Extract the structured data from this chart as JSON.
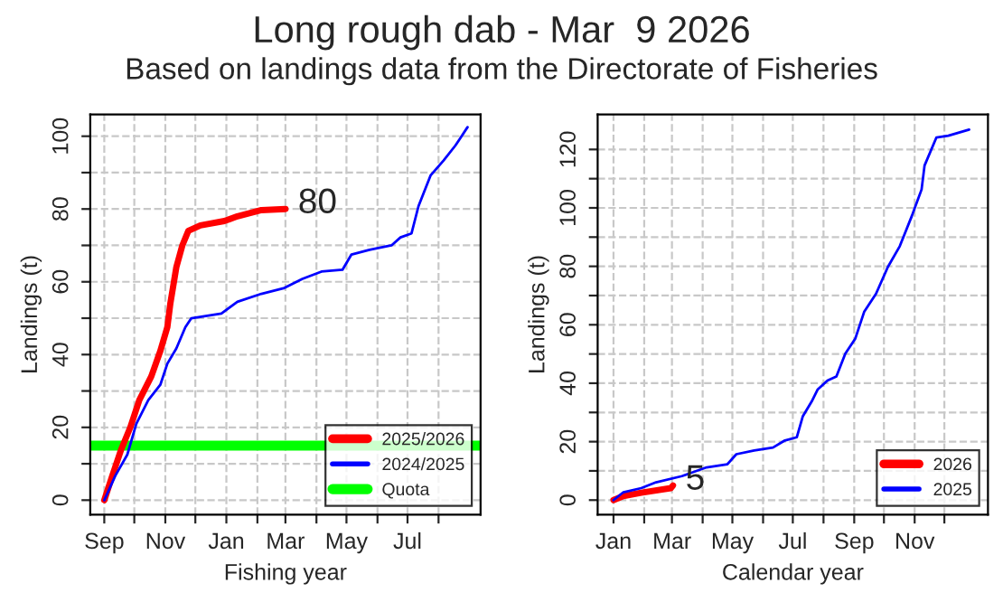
{
  "chart_data": [
    {
      "type": "line",
      "title": "Long rough dab - Mar  9 2026",
      "subtitle": "Based on landings data from the Directorate of Fisheries",
      "xlabel": "Fishing year",
      "ylabel": "Landings (t)",
      "xlim": [
        "2025-08-18",
        "2026-09-12"
      ],
      "ylim": [
        -4,
        106
      ],
      "xticks": [
        {
          "value": "2025-09-01",
          "label": "Sep"
        },
        {
          "value": "2025-10-01",
          "label": null
        },
        {
          "value": "2025-11-01",
          "label": "Nov"
        },
        {
          "value": "2025-12-01",
          "label": null
        },
        {
          "value": "2026-01-01",
          "label": "Jan"
        },
        {
          "value": "2026-02-01",
          "label": null
        },
        {
          "value": "2026-03-01",
          "label": "Mar"
        },
        {
          "value": "2026-04-01",
          "label": null
        },
        {
          "value": "2026-05-01",
          "label": "May"
        },
        {
          "value": "2026-06-01",
          "label": null
        },
        {
          "value": "2026-07-01",
          "label": "Jul"
        },
        {
          "value": "2026-08-01",
          "label": null
        }
      ],
      "yticks": [
        0,
        {
          "value": 10,
          "label": null
        },
        20,
        {
          "value": 30,
          "label": null
        },
        40,
        {
          "value": 50,
          "label": null
        },
        60,
        {
          "value": 70,
          "label": null
        },
        80,
        {
          "value": 90,
          "label": null
        },
        100
      ],
      "grid": true,
      "legend": "bottom right",
      "series": [
        {
          "name": "2025/2026",
          "color": "#ff0000",
          "x": [
            "2025-09-01",
            "2025-09-09",
            "2025-09-18",
            "2025-09-27",
            "2025-10-06",
            "2025-10-18",
            "2025-10-27",
            "2025-11-03",
            "2025-11-06",
            "2025-11-12",
            "2025-11-18",
            "2025-11-24",
            "2025-12-06",
            "2025-12-30",
            "2026-01-12",
            "2026-02-05",
            "2026-03-01"
          ],
          "values": [
            0,
            6.7,
            14,
            20,
            27.5,
            34,
            41,
            47.5,
            54,
            64,
            70,
            74,
            75.5,
            76.7,
            78,
            79.7,
            80
          ]
        },
        {
          "name": "2024/2025",
          "color": "#0000ff",
          "x": [
            "2025-09-01",
            "2025-09-12",
            "2025-09-24",
            "2025-10-03",
            "2025-10-15",
            "2025-10-27",
            "2025-11-03",
            "2025-11-12",
            "2025-11-21",
            "2025-11-27",
            "2025-12-27",
            "2026-01-12",
            "2026-02-05",
            "2026-02-28",
            "2026-03-18",
            "2026-04-06",
            "2026-04-27",
            "2026-05-06",
            "2026-05-24",
            "2026-06-15",
            "2026-06-24",
            "2026-07-05",
            "2026-07-12",
            "2026-07-24",
            "2026-08-06",
            "2026-08-18",
            "2026-08-30"
          ],
          "values": [
            0,
            6.7,
            12.5,
            21,
            27.5,
            31.7,
            37.5,
            41.7,
            47.5,
            50,
            51.3,
            54.5,
            56.7,
            58.3,
            60.8,
            62.8,
            63.3,
            67.5,
            68.8,
            70,
            72.2,
            73.3,
            80.8,
            89.2,
            93.3,
            97.5,
            102.5
          ]
        }
      ],
      "ref_lines": [
        {
          "axis": "y",
          "value": 15,
          "label": "Quota",
          "color": "#00ff00"
        }
      ],
      "annotations": [
        "80"
      ]
    },
    {
      "type": "line",
      "xlabel": "Calendar year",
      "ylabel": "Landings (t)",
      "xlim": [
        "2025-12-16",
        "2027-01-14"
      ],
      "ylim": [
        -5,
        132
      ],
      "xticks": [
        {
          "value": "2026-01-01",
          "label": "Jan"
        },
        {
          "value": "2026-02-01",
          "label": null
        },
        {
          "value": "2026-03-01",
          "label": "Mar"
        },
        {
          "value": "2026-04-01",
          "label": null
        },
        {
          "value": "2026-05-01",
          "label": "May"
        },
        {
          "value": "2026-06-01",
          "label": null
        },
        {
          "value": "2026-07-01",
          "label": "Jul"
        },
        {
          "value": "2026-08-01",
          "label": null
        },
        {
          "value": "2026-09-01",
          "label": "Sep"
        },
        {
          "value": "2026-10-01",
          "label": null
        },
        {
          "value": "2026-11-01",
          "label": "Nov"
        },
        {
          "value": "2026-12-01",
          "label": null
        }
      ],
      "yticks": [
        0,
        {
          "value": 10,
          "label": null
        },
        20,
        {
          "value": 30,
          "label": null
        },
        40,
        {
          "value": 50,
          "label": null
        },
        60,
        {
          "value": 70,
          "label": null
        },
        80,
        {
          "value": 90,
          "label": null
        },
        100,
        {
          "value": 110,
          "label": null
        },
        120
      ],
      "grid": true,
      "legend": "bottom right",
      "series": [
        {
          "name": "2026",
          "color": "#ff0000",
          "x": [
            "2026-01-01",
            "2026-01-11",
            "2026-01-29",
            "2026-02-28",
            "2026-03-02"
          ],
          "values": [
            0,
            1.4,
            2.5,
            4.1,
            5
          ]
        },
        {
          "name": "2025",
          "color": "#0000ff",
          "x": [
            "2026-01-01",
            "2026-01-11",
            "2026-01-29",
            "2026-02-13",
            "2026-03-11",
            "2026-04-05",
            "2026-04-26",
            "2026-05-05",
            "2026-05-23",
            "2026-06-11",
            "2026-06-23",
            "2026-07-05",
            "2026-07-11",
            "2026-07-20",
            "2026-07-26",
            "2026-08-05",
            "2026-08-14",
            "2026-08-23",
            "2026-09-02",
            "2026-09-11",
            "2026-09-23",
            "2026-10-05",
            "2026-10-17",
            "2026-10-29",
            "2026-11-08",
            "2026-11-11",
            "2026-11-23",
            "2026-12-05",
            "2026-12-26"
          ],
          "values": [
            0,
            2.7,
            4.1,
            6.1,
            8.2,
            11.2,
            12.3,
            15.7,
            17,
            18,
            20.4,
            21.5,
            28.6,
            33.7,
            37.8,
            40.9,
            42.3,
            50.1,
            55.2,
            64.4,
            70.6,
            79.8,
            86.9,
            97.1,
            106.3,
            114.5,
            124.1,
            124.7,
            126.8
          ]
        }
      ],
      "annotations": [
        "5"
      ]
    }
  ]
}
